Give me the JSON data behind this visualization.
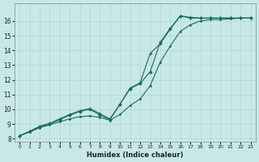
{
  "xlabel": "Humidex (Indice chaleur)",
  "background_color": "#c8e8e8",
  "grid_color": "#b0d4d4",
  "line_color": "#1a6b5a",
  "xlim": [
    -0.5,
    23.5
  ],
  "ylim": [
    7.8,
    17.2
  ],
  "xticks": [
    0,
    1,
    2,
    3,
    4,
    5,
    6,
    7,
    8,
    9,
    10,
    11,
    12,
    13,
    14,
    15,
    16,
    17,
    18,
    19,
    20,
    21,
    22,
    23
  ],
  "yticks": [
    8,
    9,
    10,
    11,
    12,
    13,
    14,
    15,
    16
  ],
  "line1_x": [
    0,
    1,
    2,
    3,
    4,
    5,
    6,
    7,
    8,
    9,
    10,
    11,
    12,
    13,
    14,
    15,
    16,
    17,
    18,
    19,
    20,
    21,
    22,
    23
  ],
  "line1_y": [
    8.2,
    8.5,
    8.8,
    9.0,
    9.3,
    9.6,
    9.85,
    10.0,
    9.6,
    9.3,
    10.35,
    11.4,
    11.75,
    12.55,
    14.55,
    15.5,
    16.35,
    16.2,
    16.2,
    16.2,
    16.2,
    16.2,
    16.2,
    16.2
  ],
  "line2_x": [
    0,
    1,
    2,
    3,
    4,
    5,
    6,
    7,
    8,
    9,
    10,
    11,
    12,
    13,
    14,
    15,
    16,
    17,
    18,
    19,
    20,
    21,
    22,
    23
  ],
  "line2_y": [
    8.2,
    8.5,
    8.85,
    9.05,
    9.35,
    9.65,
    9.9,
    10.05,
    9.7,
    9.35,
    10.35,
    11.45,
    11.8,
    13.8,
    14.45,
    15.45,
    16.35,
    16.25,
    16.2,
    16.2,
    16.2,
    16.2,
    16.2,
    16.2
  ],
  "line3_x": [
    0,
    1,
    2,
    3,
    4,
    5,
    6,
    7,
    8,
    9,
    10,
    11,
    12,
    13,
    14,
    15,
    16,
    17,
    18,
    19,
    20,
    21,
    22,
    23
  ],
  "line3_y": [
    8.2,
    8.45,
    8.75,
    8.95,
    9.15,
    9.35,
    9.5,
    9.55,
    9.45,
    9.25,
    9.65,
    10.25,
    10.7,
    11.6,
    13.2,
    14.3,
    15.3,
    15.75,
    16.0,
    16.1,
    16.1,
    16.15,
    16.2,
    16.2
  ]
}
